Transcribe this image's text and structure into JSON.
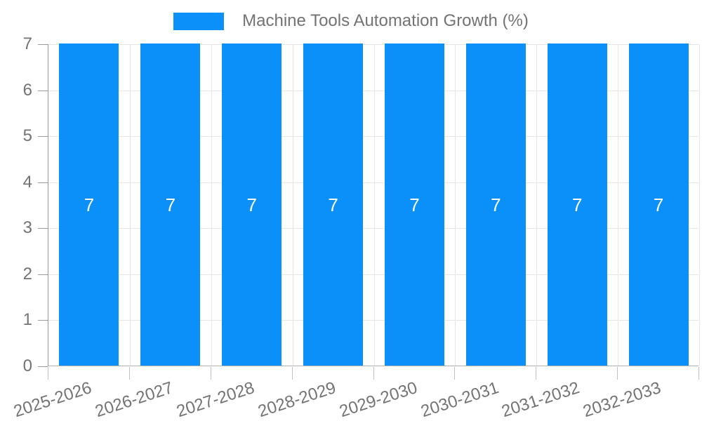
{
  "chart_data": {
    "type": "bar",
    "title": "Machine Tools Automation Growth (%)",
    "categories": [
      "2025-2026",
      "2026-2027",
      "2027-2028",
      "2028-2029",
      "2029-2030",
      "2030-2031",
      "2031-2032",
      "2032-2033"
    ],
    "values": [
      7,
      7,
      7,
      7,
      7,
      7,
      7,
      7
    ],
    "data_labels": [
      "7",
      "7",
      "7",
      "7",
      "7",
      "7",
      "7",
      "7"
    ],
    "xlabel": "",
    "ylabel": "",
    "ylim": [
      0,
      7
    ],
    "yticks": [
      0,
      1,
      2,
      3,
      4,
      5,
      6,
      7
    ],
    "grid": true,
    "legend": {
      "position": "top",
      "label": "Machine Tools Automation Growth (%)"
    },
    "colors": {
      "bar": "#0a90f8",
      "bar_label": "#ffffff",
      "legend_text": "#737373",
      "tick_text": "#737373",
      "y_axis_line": "#9a9a9a",
      "x_axis_line": "#b3b3b3",
      "gridline": "#e6e6e6",
      "tick_mark": "#c2c2c2",
      "background": "#ffffff"
    }
  }
}
